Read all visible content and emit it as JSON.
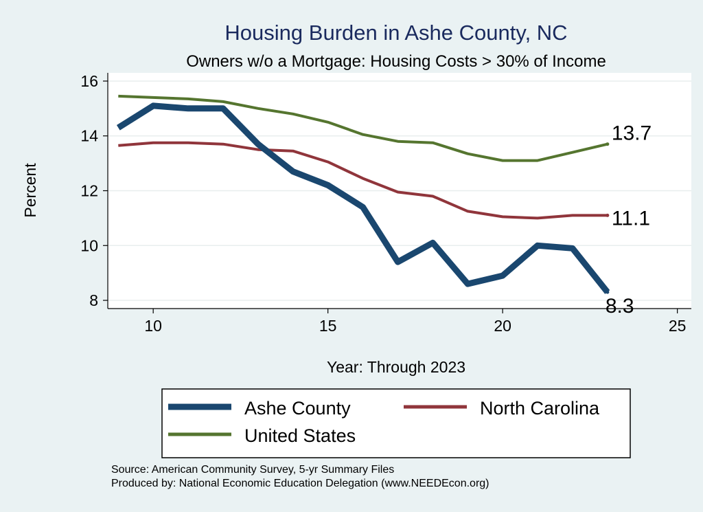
{
  "chart_data": {
    "type": "line",
    "title": "Housing Burden in Ashe County, NC",
    "subtitle": "Owners w/o a Mortgage: Housing Costs > 30% of Income",
    "xlabel": "Year: Through 2023",
    "ylabel": "Percent",
    "xlim": [
      8.7,
      25.4
    ],
    "ylim": [
      7.7,
      16.3
    ],
    "xticks": [
      10,
      15,
      20,
      25
    ],
    "yticks": [
      8,
      10,
      12,
      14,
      16
    ],
    "xtick_labels": [
      "10",
      "15",
      "20",
      "25"
    ],
    "ytick_labels": [
      "8",
      "10",
      "12",
      "14",
      "16"
    ],
    "grid": true,
    "x": [
      9,
      10,
      11,
      12,
      13,
      14,
      15,
      16,
      17,
      18,
      19,
      20,
      21,
      22,
      23
    ],
    "series": [
      {
        "name": "Ashe County",
        "color": "#1a476f",
        "values": [
          14.3,
          15.1,
          15.0,
          15.0,
          13.7,
          12.7,
          12.2,
          11.4,
          9.4,
          10.1,
          8.6,
          8.9,
          10.0,
          9.9,
          8.3
        ],
        "end_label": "8.3"
      },
      {
        "name": "North Carolina",
        "color": "#90353b",
        "values": [
          13.65,
          13.75,
          13.75,
          13.7,
          13.5,
          13.45,
          13.05,
          12.45,
          11.95,
          11.8,
          11.25,
          11.05,
          11.0,
          11.1,
          11.1
        ],
        "end_label": "11.1"
      },
      {
        "name": "United States",
        "color": "#55752f",
        "values": [
          15.45,
          15.4,
          15.35,
          15.25,
          15.0,
          14.8,
          14.5,
          14.05,
          13.8,
          13.75,
          13.35,
          13.1,
          13.1,
          13.4,
          13.7
        ],
        "end_label": "13.7"
      }
    ],
    "legend_position": "bottom",
    "notes": [
      "Source: American Community Survey, 5-yr Summary Files",
      "Produced by: National Economic Education Delegation (www.NEEDEcon.org)"
    ]
  }
}
